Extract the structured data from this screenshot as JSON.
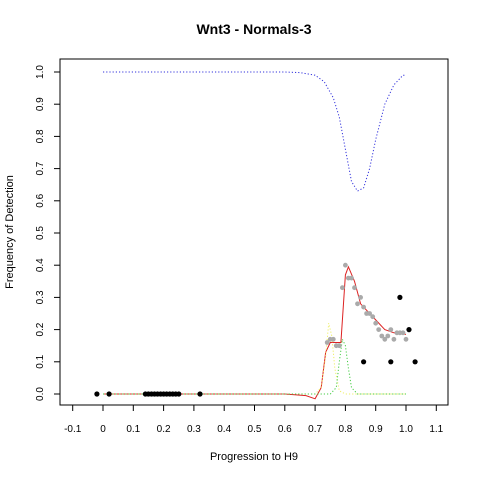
{
  "chart_data": {
    "type": "scatter",
    "title": "Wnt3 - Normals-3",
    "xlabel": "Progression to H9",
    "ylabel": "Frequency of Detection",
    "xlim": [
      -0.1,
      1.1
    ],
    "ylim": [
      0,
      1.0
    ],
    "xticks": [
      "-0.1",
      "0",
      "0.1",
      "0.2",
      "0.3",
      "0.4",
      "0.5",
      "0.6",
      "0.7",
      "0.8",
      "0.9",
      "1.0",
      "1.1"
    ],
    "yticks": [
      "0.0",
      "0.1",
      "0.2",
      "0.3",
      "0.4",
      "0.5",
      "0.6",
      "0.7",
      "0.8",
      "0.9",
      "1.0"
    ],
    "grid": false,
    "series": [
      {
        "kind": "points",
        "color": "#000000",
        "x": [
          -0.02,
          0.02,
          0.14,
          0.15,
          0.16,
          0.17,
          0.18,
          0.19,
          0.2,
          0.21,
          0.22,
          0.23,
          0.24,
          0.25,
          0.32,
          0.86,
          0.95,
          0.98,
          1.01,
          1.03
        ],
        "y": [
          0,
          0,
          0,
          0,
          0,
          0,
          0,
          0,
          0,
          0,
          0,
          0,
          0,
          0,
          0,
          0.1,
          0.1,
          0.3,
          0.2,
          0.1
        ]
      },
      {
        "kind": "points",
        "color": "#aaaaaa",
        "x": [
          0.74,
          0.75,
          0.76,
          0.77,
          0.78,
          0.79,
          0.8,
          0.81,
          0.82,
          0.83,
          0.84,
          0.85,
          0.86,
          0.87,
          0.88,
          0.89,
          0.9,
          0.91,
          0.92,
          0.93,
          0.94,
          0.95,
          0.96,
          0.97,
          0.98,
          0.99,
          1.0
        ],
        "y": [
          0.16,
          0.17,
          0.17,
          0.15,
          0.15,
          0.33,
          0.4,
          0.36,
          0.36,
          0.33,
          0.28,
          0.3,
          0.27,
          0.25,
          0.25,
          0.24,
          0.22,
          0.2,
          0.18,
          0.17,
          0.18,
          0.2,
          0.17,
          0.19,
          0.19,
          0.19,
          0.17
        ]
      },
      {
        "kind": "line",
        "style": "solid",
        "color": "#dd2222",
        "x": [
          0.0,
          0.1,
          0.2,
          0.3,
          0.4,
          0.5,
          0.6,
          0.67,
          0.7,
          0.72,
          0.735,
          0.75,
          0.77,
          0.785,
          0.8,
          0.81,
          0.83,
          0.85,
          0.88,
          0.9,
          0.93,
          0.96,
          1.0
        ],
        "y": [
          0.0,
          0.0,
          0.0,
          0.0,
          0.0,
          0.0,
          0.0,
          -0.005,
          -0.015,
          0.02,
          0.13,
          0.16,
          0.16,
          0.16,
          0.37,
          0.395,
          0.35,
          0.28,
          0.25,
          0.23,
          0.2,
          0.19,
          0.185
        ]
      },
      {
        "kind": "line",
        "style": "dotted",
        "color": "#3333dd",
        "x": [
          0.0,
          0.2,
          0.4,
          0.6,
          0.65,
          0.7,
          0.73,
          0.76,
          0.78,
          0.8,
          0.82,
          0.84,
          0.86,
          0.88,
          0.9,
          0.93,
          0.96,
          0.99,
          1.0
        ],
        "y": [
          1.0,
          1.0,
          1.0,
          1.0,
          0.998,
          0.99,
          0.97,
          0.92,
          0.86,
          0.76,
          0.66,
          0.63,
          0.64,
          0.7,
          0.79,
          0.9,
          0.96,
          0.99,
          0.99
        ]
      },
      {
        "kind": "line",
        "style": "dotted",
        "color": "#eeee66",
        "x": [
          0.0,
          0.5,
          0.7,
          0.72,
          0.735,
          0.745,
          0.755,
          0.765,
          0.78,
          0.8,
          1.0
        ],
        "y": [
          0.0,
          0.0,
          0.0,
          0.02,
          0.12,
          0.22,
          0.18,
          0.08,
          0.01,
          0.0,
          0.0
        ]
      },
      {
        "kind": "line",
        "style": "dotted",
        "color": "#44cc44",
        "x": [
          0.0,
          0.5,
          0.75,
          0.77,
          0.78,
          0.79,
          0.8,
          0.81,
          0.82,
          0.84,
          1.0
        ],
        "y": [
          0.0,
          0.0,
          0.0,
          0.02,
          0.1,
          0.17,
          0.15,
          0.08,
          0.02,
          0.0,
          0.0
        ]
      }
    ]
  }
}
